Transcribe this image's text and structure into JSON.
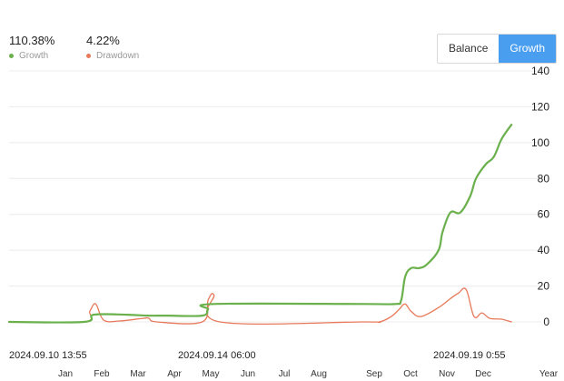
{
  "stats": {
    "growth": {
      "value": "110.38%",
      "label": "Growth",
      "color": "#6ab04c"
    },
    "drawdown": {
      "value": "4.22%",
      "label": "Drawdown",
      "color": "#e8795a"
    }
  },
  "toggle": {
    "balance_label": "Balance",
    "growth_label": "Growth",
    "active": "Growth",
    "active_color": "#4a9ef0"
  },
  "chart_data": {
    "type": "line",
    "ylim": [
      0,
      140
    ],
    "y_ticks": [
      "140",
      "120",
      "100",
      "80",
      "60",
      "40",
      "20",
      "0"
    ],
    "date_labels": [
      "2024.09.10 13:55",
      "2024.09.14 06:00",
      "2024.09.19 0:55"
    ],
    "month_labels": [
      "Jan",
      "Feb",
      "Mar",
      "Apr",
      "May",
      "Jun",
      "Jul",
      "Aug",
      "Sep",
      "Oct",
      "Nov",
      "Dec",
      "Year"
    ],
    "x_range": [
      0,
      13
    ],
    "grid": true,
    "series": [
      {
        "name": "Growth",
        "color": "#6ab04c",
        "x": [
          0,
          1.9,
          2.15,
          3.0,
          3.5,
          4.0,
          4.9,
          5.05,
          5.2,
          9.0,
          9.8,
          9.95,
          10.05,
          10.2,
          10.4,
          10.6,
          10.9,
          11.0,
          11.2,
          11.45,
          11.7,
          11.85,
          12.1,
          12.3,
          12.5,
          12.75
        ],
        "values": [
          0,
          0,
          4,
          4,
          3.5,
          3.5,
          3.5,
          7,
          10,
          10,
          10,
          12,
          25,
          30,
          30,
          32,
          40,
          50,
          61,
          61,
          70,
          80,
          88,
          92,
          102,
          110
        ]
      },
      {
        "name": "Drawdown",
        "color": "#e8795a",
        "x": [
          0,
          1.9,
          2.05,
          2.2,
          2.4,
          2.8,
          3.4,
          3.55,
          3.75,
          4.9,
          5.05,
          5.2,
          5.35,
          9.0,
          9.4,
          9.7,
          9.9,
          10.05,
          10.2,
          10.45,
          10.9,
          11.2,
          11.4,
          11.6,
          11.8,
          12.0,
          12.2,
          12.5,
          12.75
        ],
        "values": [
          0,
          0,
          6,
          10,
          1,
          0.5,
          2,
          2,
          0,
          0,
          12,
          15,
          0,
          0,
          0,
          3,
          7,
          10,
          6,
          3,
          8,
          13,
          16,
          18,
          3,
          5,
          2,
          1.5,
          0
        ]
      }
    ]
  }
}
